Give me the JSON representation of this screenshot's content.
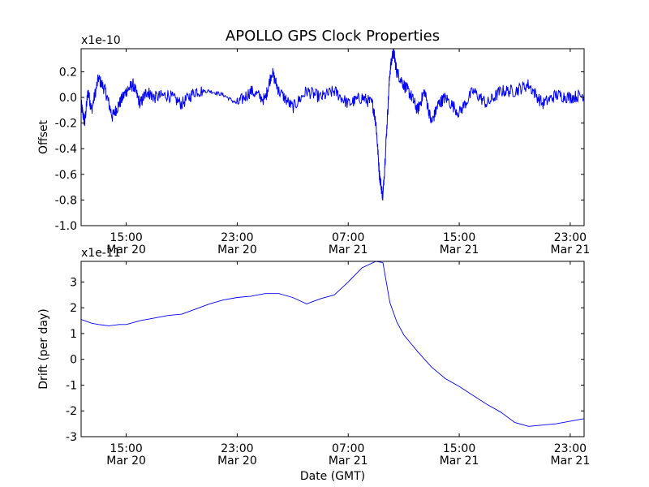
{
  "title": "APOLLO GPS Clock Properties",
  "colors": {
    "line": "#0000ff",
    "axes": "#000000",
    "background": "#ffffff"
  },
  "chart_data": [
    {
      "type": "line",
      "ylabel": "Offset",
      "scale_label": "x1e-10",
      "ylim": [
        -1.0,
        0.38
      ],
      "yticks": [
        "0.2",
        "0.0",
        "-0.2",
        "-0.4",
        "-0.6",
        "-0.8",
        "-1.0"
      ],
      "ytick_values": [
        0.2,
        0.0,
        -0.2,
        -0.4,
        -0.6,
        -0.8,
        -1.0
      ],
      "xlim": [
        "Mar 20 11:45",
        "Mar 22 00:00"
      ],
      "xtick_times": [
        "Mar 20 15:00",
        "Mar 20 23:00",
        "Mar 21 07:00",
        "Mar 21 15:00",
        "Mar 21 23:00"
      ],
      "xticks": [
        {
          "time": "15:00",
          "date": "Mar 20"
        },
        {
          "time": "23:00",
          "date": "Mar 20"
        },
        {
          "time": "07:00",
          "date": "Mar 21"
        },
        {
          "time": "15:00",
          "date": "Mar 21"
        },
        {
          "time": "23:00",
          "date": "Mar 21"
        }
      ],
      "series": [
        {
          "x": [
            "Mar 20 11:45",
            "Mar 20 12:00",
            "Mar 20 12:15",
            "Mar 20 12:30",
            "Mar 20 13:00",
            "Mar 20 13:30",
            "Mar 20 14:00",
            "Mar 20 14:30",
            "Mar 20 15:00",
            "Mar 20 15:30",
            "Mar 20 16:00",
            "Mar 20 16:30",
            "Mar 20 17:00",
            "Mar 20 18:00",
            "Mar 20 19:00",
            "Mar 20 20:00",
            "Mar 20 21:00",
            "Mar 20 22:00",
            "Mar 20 23:00",
            "Mar 21 00:00",
            "Mar 21 01:00",
            "Mar 21 01:30",
            "Mar 21 02:00",
            "Mar 21 03:00",
            "Mar 21 04:00",
            "Mar 21 05:00",
            "Mar 21 06:00",
            "Mar 21 07:00",
            "Mar 21 08:00",
            "Mar 21 08:45",
            "Mar 21 09:00",
            "Mar 21 09:15",
            "Mar 21 09:30",
            "Mar 21 09:45",
            "Mar 21 10:00",
            "Mar 21 10:15",
            "Mar 21 10:30",
            "Mar 21 11:00",
            "Mar 21 11:30",
            "Mar 21 12:00",
            "Mar 21 12:30",
            "Mar 21 13:00",
            "Mar 21 13:30",
            "Mar 21 14:00",
            "Mar 21 15:00",
            "Mar 21 16:00",
            "Mar 21 17:00",
            "Mar 21 18:00",
            "Mar 21 19:00",
            "Mar 21 20:00",
            "Mar 21 21:00",
            "Mar 21 22:00",
            "Mar 21 23:00",
            "Mar 22 00:00"
          ],
          "y": [
            -0.05,
            -0.2,
            0.05,
            -0.1,
            0.15,
            0.05,
            -0.15,
            -0.05,
            0.05,
            0.1,
            -0.05,
            0.05,
            0.0,
            0.02,
            -0.05,
            0.05,
            0.05,
            0.02,
            -0.05,
            0.05,
            -0.02,
            0.2,
            0.05,
            -0.08,
            0.05,
            0.0,
            0.05,
            -0.05,
            0.0,
            -0.05,
            -0.2,
            -0.6,
            -0.78,
            -0.3,
            0.2,
            0.37,
            0.2,
            0.1,
            0.02,
            -0.1,
            0.05,
            -0.2,
            -0.05,
            0.0,
            -0.12,
            0.05,
            -0.05,
            0.05,
            0.05,
            0.1,
            -0.05,
            0.02,
            0.0,
            0.02
          ]
        }
      ]
    },
    {
      "type": "line",
      "ylabel": "Drift (per day)",
      "xlabel": "Date (GMT)",
      "scale_label": "x1e-11",
      "ylim": [
        -3,
        3.8
      ],
      "yticks": [
        "3",
        "2",
        "1",
        "0",
        "-1",
        "-2",
        "-3"
      ],
      "ytick_values": [
        3,
        2,
        1,
        0,
        -1,
        -2,
        -3
      ],
      "xlim": [
        "Mar 20 11:45",
        "Mar 22 00:00"
      ],
      "xtick_times": [
        "Mar 20 15:00",
        "Mar 20 23:00",
        "Mar 21 07:00",
        "Mar 21 15:00",
        "Mar 21 23:00"
      ],
      "xticks": [
        {
          "time": "15:00",
          "date": "Mar 20"
        },
        {
          "time": "23:00",
          "date": "Mar 20"
        },
        {
          "time": "07:00",
          "date": "Mar 21"
        },
        {
          "time": "15:00",
          "date": "Mar 21"
        },
        {
          "time": "23:00",
          "date": "Mar 21"
        }
      ],
      "series": [
        {
          "x": [
            "Mar 20 11:45",
            "Mar 20 12:30",
            "Mar 20 13:00",
            "Mar 20 13:45",
            "Mar 20 14:30",
            "Mar 20 15:00",
            "Mar 20 16:00",
            "Mar 20 17:00",
            "Mar 20 18:00",
            "Mar 20 19:00",
            "Mar 20 20:00",
            "Mar 20 21:00",
            "Mar 20 22:00",
            "Mar 20 23:00",
            "Mar 21 00:00",
            "Mar 21 01:00",
            "Mar 21 02:00",
            "Mar 21 03:00",
            "Mar 21 04:00",
            "Mar 21 05:00",
            "Mar 21 06:00",
            "Mar 21 07:00",
            "Mar 21 08:00",
            "Mar 21 09:00",
            "Mar 21 09:30",
            "Mar 21 10:00",
            "Mar 21 10:30",
            "Mar 21 11:00",
            "Mar 21 12:00",
            "Mar 21 13:00",
            "Mar 21 14:00",
            "Mar 21 15:00",
            "Mar 21 16:00",
            "Mar 21 17:00",
            "Mar 21 18:00",
            "Mar 21 19:00",
            "Mar 21 20:00",
            "Mar 21 21:00",
            "Mar 21 22:00",
            "Mar 21 23:00",
            "Mar 22 00:00"
          ],
          "y": [
            1.55,
            1.4,
            1.35,
            1.3,
            1.35,
            1.35,
            1.5,
            1.6,
            1.7,
            1.75,
            1.95,
            2.15,
            2.3,
            2.4,
            2.45,
            2.55,
            2.55,
            2.4,
            2.15,
            2.35,
            2.5,
            3.0,
            3.55,
            3.8,
            3.75,
            2.2,
            1.45,
            0.95,
            0.3,
            -0.3,
            -0.75,
            -1.05,
            -1.4,
            -1.75,
            -2.05,
            -2.45,
            -2.6,
            -2.55,
            -2.5,
            -2.4,
            -2.3
          ]
        }
      ]
    }
  ]
}
